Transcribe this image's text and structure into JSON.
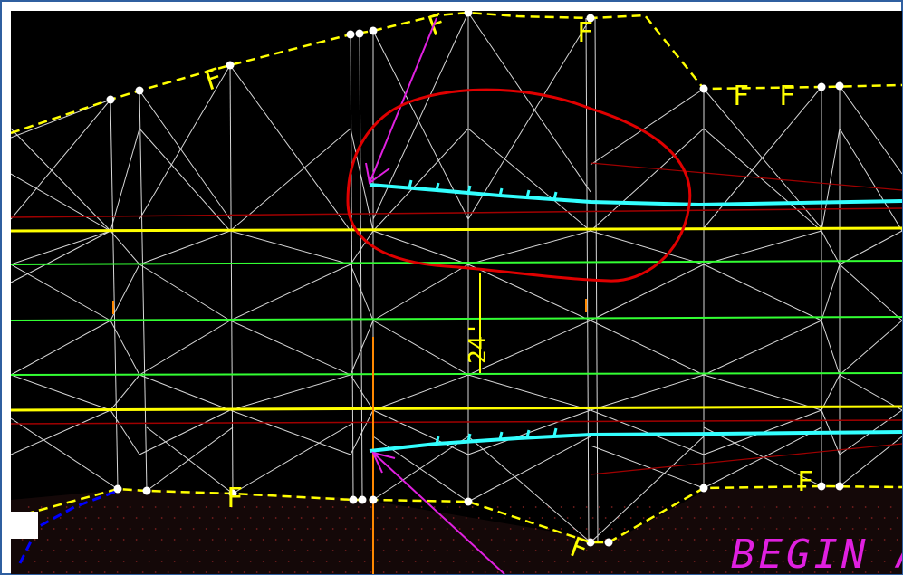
{
  "colors": {
    "frame_border": "#2f5fa0",
    "background": "#000000",
    "boundary": "#ffff00",
    "mesh": "#d8d8d8",
    "yellow_line": "#ffff00",
    "green_line": "#33ff33",
    "red_line": "#a00000",
    "cyan_line": "#33ffff",
    "magenta_arrow": "#e020e0",
    "red_markup": "#e00000",
    "orange_line": "#ff8800",
    "blue_line": "#0000ff",
    "dimension_text": "#ffff00",
    "label_text": "#e020e0"
  },
  "labels": {
    "dimension": "24'",
    "begin_label": "BEGIN A",
    "f_marker": "F"
  }
}
